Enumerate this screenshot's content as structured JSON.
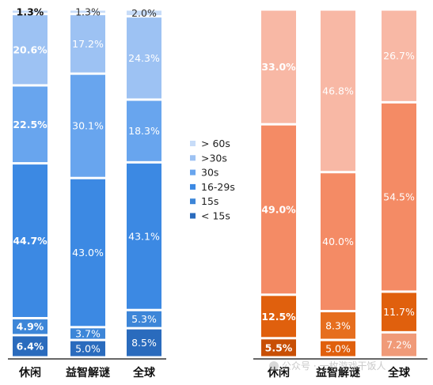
{
  "chart_data": [
    {
      "type": "bar",
      "stacked": true,
      "normalized": true,
      "categories": [
        "休闲",
        "益智解谜",
        "全球"
      ],
      "series": [
        {
          "name": "< 15s",
          "color": "#2a6bbd",
          "values": [
            6.4,
            5.0,
            8.5
          ]
        },
        {
          "name": "15s",
          "color": "#3d86d8",
          "values": [
            4.9,
            3.7,
            5.3
          ]
        },
        {
          "name": "16-29s",
          "color": "#3c89e3",
          "values": [
            44.7,
            43.0,
            43.1
          ]
        },
        {
          "name": "30s",
          "color": "#68a5ee",
          "values": [
            22.5,
            30.1,
            18.3
          ]
        },
        {
          "name": ">30s",
          "color": "#9dc2f3",
          "values": [
            20.6,
            17.2,
            24.3
          ]
        },
        {
          "name": "> 60s",
          "color": "#c7dcf8",
          "values": [
            1.3,
            1.3,
            2.0
          ]
        }
      ],
      "data_labels": [
        [
          "6.4%",
          "5.0%",
          "8.5%"
        ],
        [
          "4.9%",
          "3.7%",
          "5.3%"
        ],
        [
          "44.7%",
          "43.0%",
          "43.1%"
        ],
        [
          "22.5%",
          "30.1%",
          "18.3%"
        ],
        [
          "20.6%",
          "17.2%",
          "24.3%"
        ],
        [
          "1.3%",
          "1.3%",
          "2.0%"
        ]
      ],
      "bold_category": "休闲"
    },
    {
      "type": "bar",
      "stacked": true,
      "normalized": true,
      "categories": [
        "休闲",
        "益智解谜",
        "全球"
      ],
      "series": [
        {
          "name": "",
          "color": "#f09a78",
          "values": [
            5.5,
            5.0,
            7.2
          ]
        },
        {
          "name": "",
          "color": "#e0600d",
          "values": [
            12.5,
            8.3,
            11.7
          ]
        },
        {
          "name": "",
          "color": "#f48b65",
          "values": [
            49.0,
            40.0,
            54.5
          ]
        },
        {
          "name": "",
          "color": "#f8b8a5",
          "values": [
            33.0,
            46.8,
            26.7
          ]
        }
      ],
      "segment_colors": [
        [
          "#c84f05",
          "#e0600d",
          "#f09a78"
        ],
        [
          "#e0600d",
          "#e66e1e",
          "#e0600d"
        ],
        [
          "#f48b65",
          "#f48b65",
          "#f48b65"
        ],
        [
          "#f8b8a5",
          "#f8b8a5",
          "#f8b8a5"
        ]
      ],
      "data_labels": [
        [
          "5.5%",
          "5.0%",
          "7.2%"
        ],
        [
          "12.5%",
          "8.3%",
          "11.7%"
        ],
        [
          "49.0%",
          "40.0%",
          "54.5%"
        ],
        [
          "33.0%",
          "46.8%",
          "26.7%"
        ]
      ],
      "bold_category": "休闲"
    }
  ],
  "legend": {
    "placement": "center",
    "items": [
      {
        "label": "> 60s",
        "color": "#c7dcf8"
      },
      {
        "label": ">30s",
        "color": "#9dc2f3"
      },
      {
        "label": "30s",
        "color": "#68a5ee"
      },
      {
        "label": "16-29s",
        "color": "#3c89e3"
      },
      {
        "label": "15s",
        "color": "#3d86d8"
      },
      {
        "label": "< 15s",
        "color": "#2a6bbd"
      }
    ]
  },
  "watermark": {
    "text": "公众号 · 一枚游戏干饭人"
  }
}
